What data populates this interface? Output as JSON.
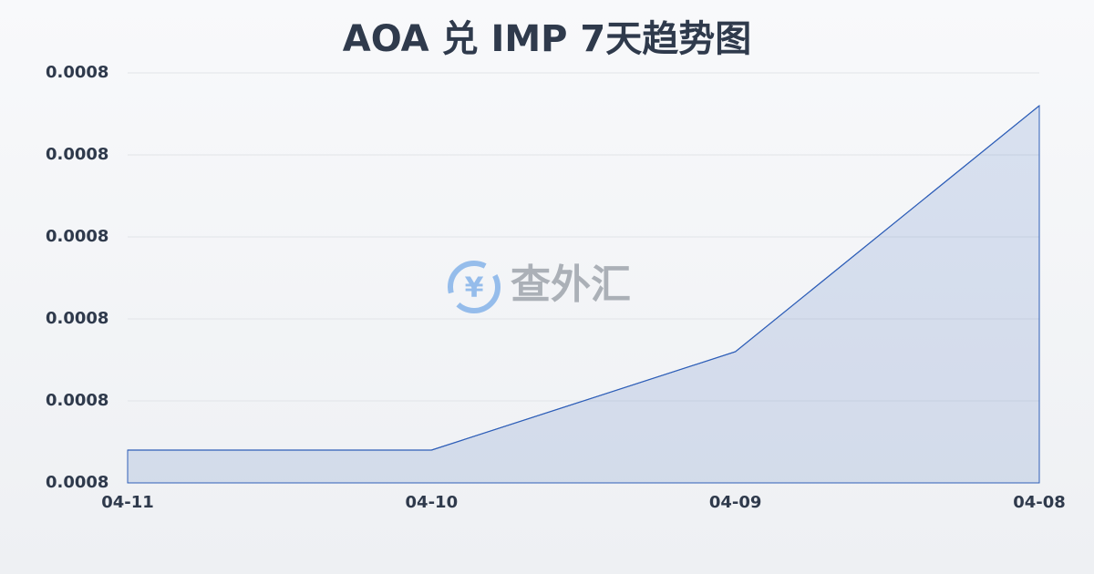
{
  "chart_data": {
    "type": "area",
    "title": "AOA 兑 IMP 7天趋势图",
    "watermark": "查外汇",
    "categories": [
      "04-11",
      "04-10",
      "04-09",
      "04-08"
    ],
    "values": [
      0.0007708,
      0.0007708,
      0.0007732,
      0.0007792
    ],
    "color": "#2f5fb8",
    "ylim": [
      0.00077,
      0.00078
    ],
    "yticks": [
      {
        "value": 0.00077,
        "label": "0.0008"
      },
      {
        "value": 0.000772,
        "label": "0.0008"
      },
      {
        "value": 0.000774,
        "label": "0.0008"
      },
      {
        "value": 0.000776,
        "label": "0.0008"
      },
      {
        "value": 0.000778,
        "label": "0.0008"
      },
      {
        "value": 0.00078,
        "label": "0.0008"
      }
    ],
    "grid": true
  }
}
